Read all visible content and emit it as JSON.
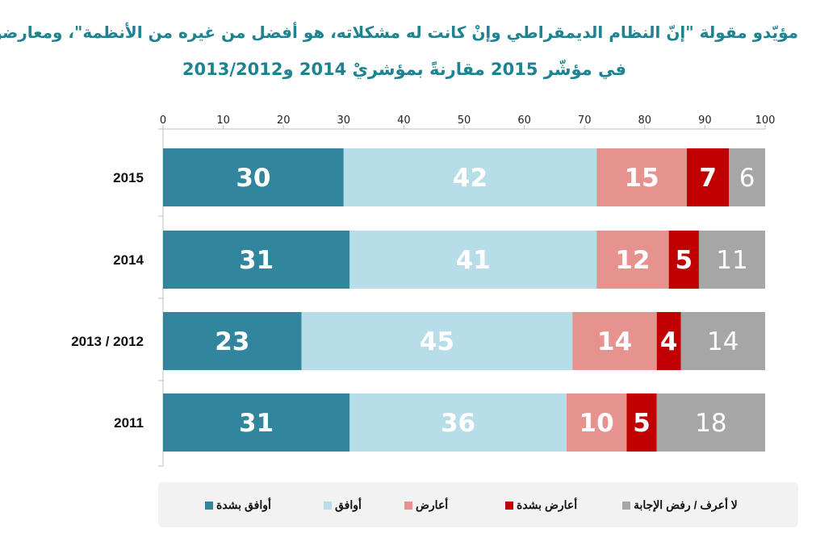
{
  "title_line1": "مؤيّدو مقولة \"إنّ النظام الديمقراطي وإنْ كانت له مشكلاته، هو أفضل من غيره من الأنظمة\"، ومعارضوها",
  "title_line2": "في مؤشّر 2015 مقارنةً بمؤشريْ 2014 و2013/2012",
  "chart_data": {
    "type": "bar",
    "orientation": "horizontal",
    "stacked": true,
    "categories": [
      "2015",
      "2014",
      "2013 / 2012",
      "2011"
    ],
    "series": [
      {
        "name": "أوافق بشدة",
        "color": "#31859c",
        "values": [
          30,
          31,
          23,
          31
        ]
      },
      {
        "name": "أوافق",
        "color": "#b7dee8",
        "values": [
          42,
          41,
          45,
          36
        ]
      },
      {
        "name": "أعارض",
        "color": "#e6928f",
        "values": [
          15,
          12,
          14,
          10
        ]
      },
      {
        "name": "أعارض بشدة",
        "color": "#c00000",
        "values": [
          7,
          5,
          4,
          5
        ]
      },
      {
        "name": "لا أعرف /  رفض الإجابة",
        "color": "#a6a6a6",
        "values": [
          6,
          11,
          14,
          18
        ]
      }
    ],
    "xlim": [
      0,
      100
    ],
    "xticks": [
      0,
      10,
      20,
      30,
      40,
      50,
      60,
      70,
      80,
      90,
      100
    ],
    "legend_position": "bottom"
  }
}
